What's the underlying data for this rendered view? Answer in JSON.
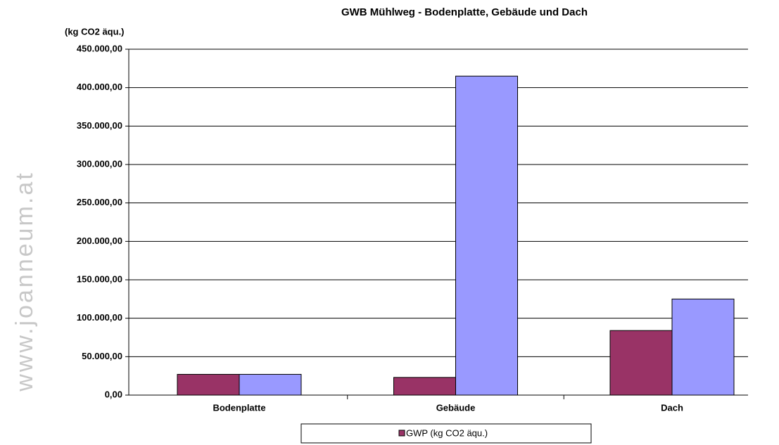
{
  "watermark": "www.joanneum.at",
  "chart_data": {
    "type": "bar",
    "title": "GWB Mühlweg - Bodenplatte, Gebäude und Dach",
    "y_label": "(kg CO2 äqu.)",
    "categories": [
      "Bodenplatte",
      "Gebäude",
      "Dach"
    ],
    "series": [
      {
        "name": "GWP (kg CO2 äqu.)",
        "color": "#993366",
        "values": [
          27000,
          23000,
          84000
        ]
      },
      {
        "color": "#9999ff",
        "values": [
          27000,
          415000,
          125000
        ]
      }
    ],
    "ylim": [
      0,
      450000
    ],
    "yticks": [
      {
        "value": 0,
        "label": "0,00"
      },
      {
        "value": 50000,
        "label": "50.000,00"
      },
      {
        "value": 100000,
        "label": "100.000,00"
      },
      {
        "value": 150000,
        "label": "150.000,00"
      },
      {
        "value": 200000,
        "label": "200.000,00"
      },
      {
        "value": 250000,
        "label": "250.000,00"
      },
      {
        "value": 300000,
        "label": "300.000,00"
      },
      {
        "value": 350000,
        "label": "350.000,00"
      },
      {
        "value": 400000,
        "label": "400.000,00"
      },
      {
        "value": 450000,
        "label": "450.000,00"
      }
    ],
    "grid": true,
    "legend": "bottom"
  }
}
